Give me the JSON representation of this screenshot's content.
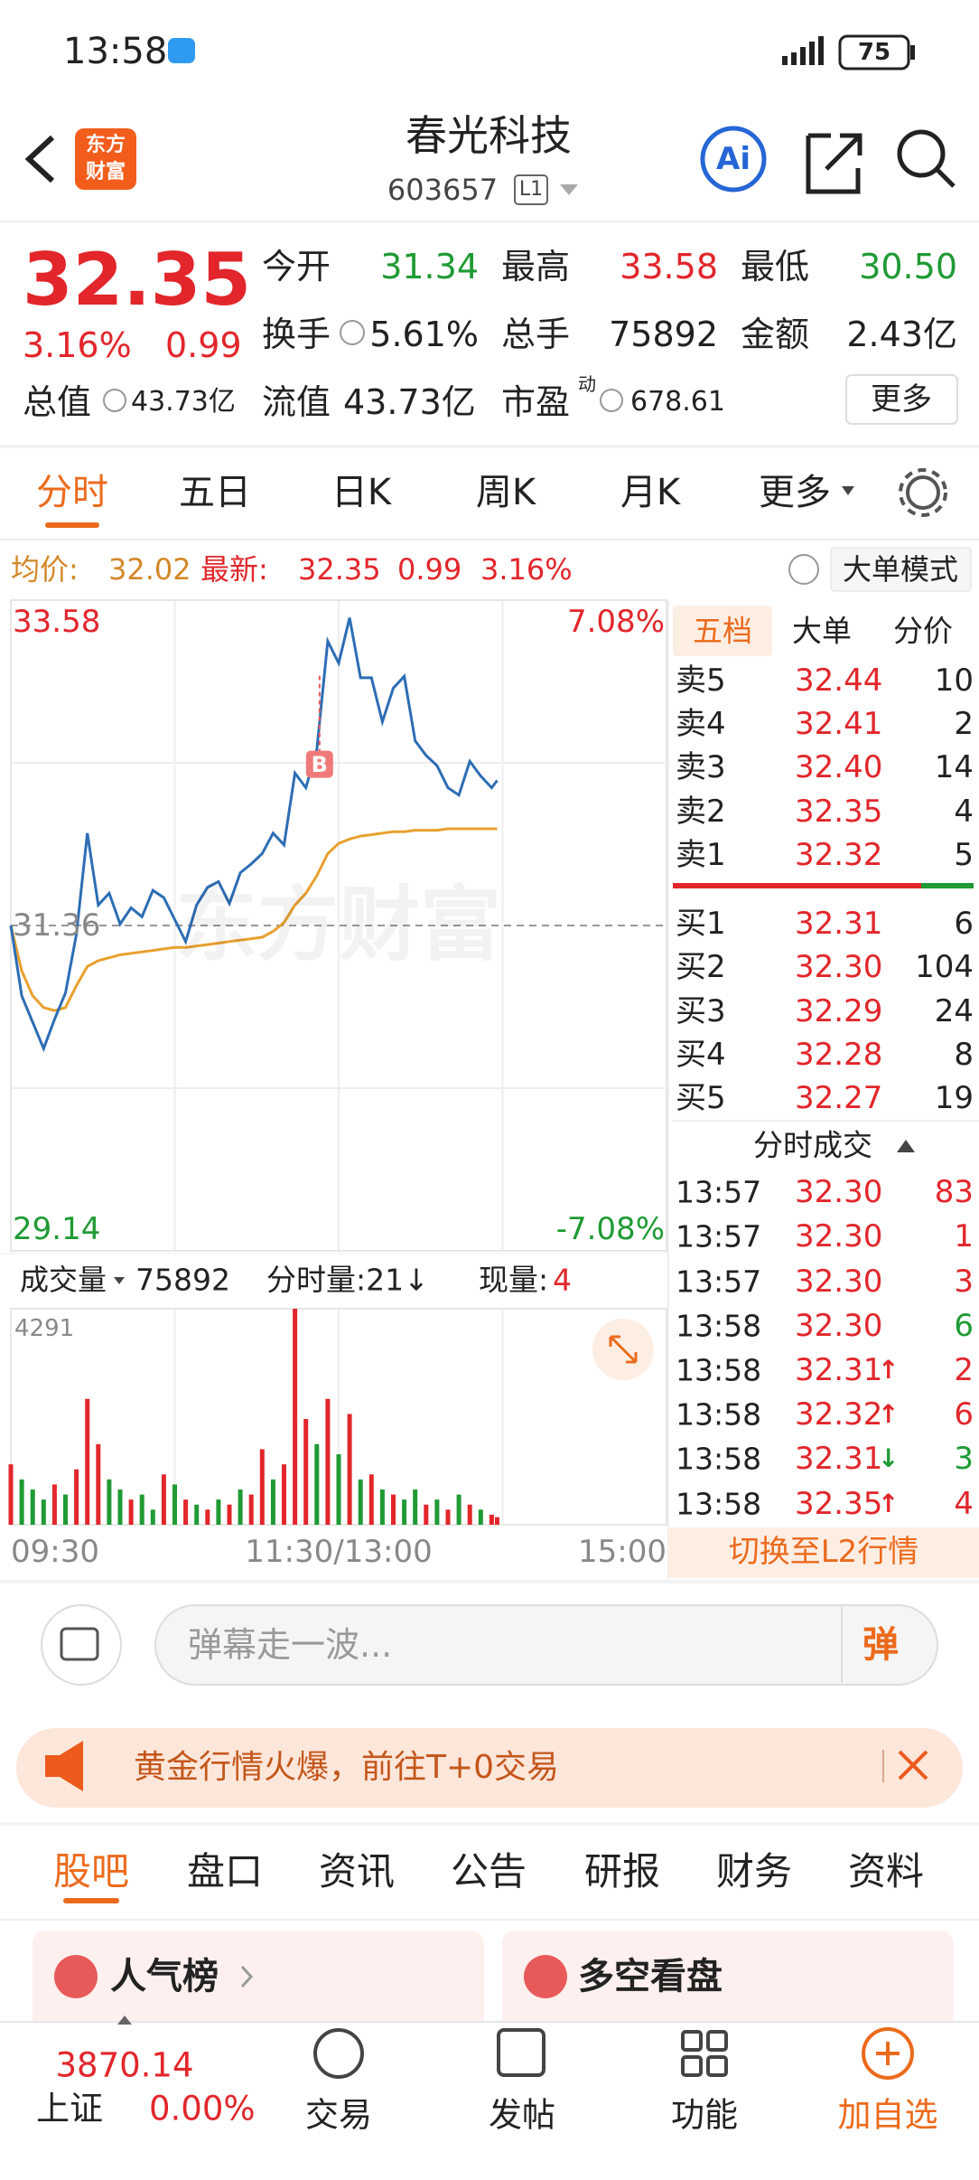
{
  "status_bar": {
    "time": "13:58",
    "battery": "75"
  },
  "header": {
    "logo": [
      "东方",
      "财富"
    ],
    "title": "春光科技",
    "code": "603657",
    "level": "L1",
    "ai": "Ai"
  },
  "quote": {
    "price": "32.35",
    "change_pct": "3.16%",
    "change": "0.99",
    "open": {
      "label": "今开",
      "value": "31.34"
    },
    "high": {
      "label": "最高",
      "value": "33.58"
    },
    "low": {
      "label": "最低",
      "value": "30.50"
    },
    "turnover": {
      "label": "换手",
      "value": "5.61%"
    },
    "volume": {
      "label": "总手",
      "value": "75892"
    },
    "amount": {
      "label": "金额",
      "value": "2.43亿"
    },
    "market_cap": {
      "label": "总值",
      "value": "43.73亿"
    },
    "float_cap": {
      "label": "流值",
      "value": "43.73亿"
    },
    "pe": {
      "label": "市盈",
      "tag": "动",
      "value": "678.61"
    },
    "more": "更多"
  },
  "tabs": [
    "分时",
    "五日",
    "日K",
    "周K",
    "月K",
    "更多"
  ],
  "info": {
    "avg_label": "均价:",
    "avg": "32.02",
    "latest_label": "最新:",
    "latest": "32.35",
    "change": "0.99",
    "change_pct": "3.16%",
    "mode": "大单模式"
  },
  "intraday": {
    "watermark": "东方财富",
    "ylim": [
      29.14,
      33.58
    ],
    "yticks": [
      33.58,
      31.36,
      29.14
    ],
    "pct_top": "7.08%",
    "pct_bottom": "-7.08%",
    "xticks": [
      "09:30",
      "11:30/13:00",
      "15:00"
    ],
    "x": [
      "09:30",
      "09:34",
      "09:38",
      "09:42",
      "09:46",
      "09:50",
      "09:54",
      "09:58",
      "10:02",
      "10:06",
      "10:10",
      "10:14",
      "10:18",
      "10:22",
      "10:26",
      "10:30",
      "10:34",
      "10:38",
      "10:42",
      "10:46",
      "10:50",
      "10:54",
      "10:58",
      "11:02",
      "11:06",
      "11:10",
      "11:14",
      "11:18",
      "11:22",
      "11:26",
      "13:00",
      "13:04",
      "13:08",
      "13:12",
      "13:16",
      "13:20",
      "13:24",
      "13:28",
      "13:32",
      "13:36",
      "13:40",
      "13:44",
      "13:48",
      "13:52",
      "13:56",
      "13:58"
    ],
    "price": [
      31.36,
      30.88,
      30.7,
      30.52,
      30.72,
      30.9,
      31.3,
      31.99,
      31.5,
      31.58,
      31.37,
      31.48,
      31.42,
      31.6,
      31.55,
      31.4,
      31.25,
      31.5,
      31.62,
      31.66,
      31.51,
      31.72,
      31.78,
      31.85,
      31.99,
      31.91,
      32.4,
      32.3,
      32.56,
      33.3,
      33.15,
      33.46,
      33.05,
      33.05,
      32.75,
      32.98,
      33.06,
      32.62,
      32.52,
      32.45,
      32.3,
      32.25,
      32.48,
      32.38,
      32.3,
      32.35
    ],
    "avg": [
      31.36,
      31.05,
      30.88,
      30.8,
      30.78,
      30.8,
      30.95,
      31.08,
      31.12,
      31.14,
      31.16,
      31.17,
      31.18,
      31.19,
      31.2,
      31.21,
      31.21,
      31.22,
      31.23,
      31.24,
      31.25,
      31.26,
      31.27,
      31.28,
      31.32,
      31.38,
      31.5,
      31.58,
      31.7,
      31.85,
      31.92,
      31.95,
      31.97,
      31.98,
      31.99,
      32.0,
      32.0,
      32.01,
      32.01,
      32.01,
      32.02,
      32.02,
      32.02,
      32.02,
      32.02,
      32.02
    ],
    "price_color": "#2d6db5",
    "avg_color": "#e8a02e",
    "buy_marker": {
      "label": "B",
      "time": "11:23",
      "value": 32.46
    }
  },
  "volume": {
    "label": "成交量",
    "total": "75892",
    "interval": "分时量:21↓",
    "current_label": "现量:",
    "current": "4",
    "ylim": [
      0,
      4291
    ],
    "yticks": [
      4291
    ],
    "up_color": "#e2262b",
    "down_color": "#1f9a34",
    "values": [
      1200,
      900,
      700,
      500,
      800,
      600,
      1100,
      2500,
      1600,
      900,
      700,
      500,
      600,
      300,
      1000,
      800,
      500,
      400,
      300,
      500,
      400,
      700,
      600,
      1500,
      900,
      1200,
      4291,
      2100,
      1600,
      2500,
      1400,
      2200,
      900,
      1000,
      700,
      600,
      500,
      700,
      400,
      500,
      300,
      600,
      400,
      300,
      200,
      150
    ],
    "directions": [
      "up",
      "down",
      "down",
      "down",
      "up",
      "down",
      "up",
      "up",
      "up",
      "down",
      "down",
      "up",
      "down",
      "down",
      "up",
      "down",
      "up",
      "down",
      "up",
      "down",
      "up",
      "down",
      "up",
      "up",
      "down",
      "up",
      "up",
      "up",
      "down",
      "up",
      "down",
      "up",
      "down",
      "up",
      "down",
      "up",
      "down",
      "down",
      "up",
      "down",
      "up",
      "down",
      "up",
      "down",
      "up",
      "up"
    ]
  },
  "order_book": {
    "tabs": [
      "五档",
      "大单",
      "分价"
    ],
    "asks": [
      {
        "label": "卖5",
        "price": "32.44",
        "volume": "10"
      },
      {
        "label": "卖4",
        "price": "32.41",
        "volume": "2"
      },
      {
        "label": "卖3",
        "price": "32.40",
        "volume": "14"
      },
      {
        "label": "卖2",
        "price": "32.35",
        "volume": "4"
      },
      {
        "label": "卖1",
        "price": "32.32",
        "volume": "5"
      }
    ],
    "bids": [
      {
        "label": "买1",
        "price": "32.31",
        "volume": "6"
      },
      {
        "label": "买2",
        "price": "32.30",
        "volume": "104"
      },
      {
        "label": "买3",
        "price": "32.29",
        "volume": "24"
      },
      {
        "label": "买4",
        "price": "32.28",
        "volume": "8"
      },
      {
        "label": "买5",
        "price": "32.27",
        "volume": "19"
      }
    ]
  },
  "trades": {
    "title": "分时成交",
    "rows": [
      {
        "time": "13:57",
        "price": "32.30",
        "volume": "83",
        "side": "buy"
      },
      {
        "time": "13:57",
        "price": "32.30",
        "volume": "1",
        "side": "buy"
      },
      {
        "time": "13:57",
        "price": "32.30",
        "volume": "3",
        "side": "buy"
      },
      {
        "time": "13:58",
        "price": "32.30",
        "volume": "6",
        "side": "sell"
      },
      {
        "time": "13:58",
        "price": "32.31",
        "arrow": "↑",
        "volume": "2",
        "side": "buy"
      },
      {
        "time": "13:58",
        "price": "32.32",
        "arrow": "↑",
        "volume": "6",
        "side": "buy"
      },
      {
        "time": "13:58",
        "price": "32.31",
        "arrow": "↓",
        "volume": "3",
        "side": "sell"
      },
      {
        "time": "13:58",
        "price": "32.35",
        "arrow": "↑",
        "volume": "4",
        "side": "buy"
      }
    ],
    "l2_link": "切换至L2行情"
  },
  "comment": {
    "placeholder": "弹幕走一波...",
    "button": "弹"
  },
  "banner": {
    "text": "黄金行情火爆，前往T+0交易"
  },
  "section_tabs": [
    "股吧",
    "盘口",
    "资讯",
    "公告",
    "研报",
    "财务",
    "资料"
  ],
  "cards": [
    "人气榜",
    "多空看盘"
  ],
  "bottom_nav": {
    "index": {
      "value": "3870.14",
      "name": "上证",
      "change": "0.00%"
    },
    "items": [
      "交易",
      "发帖",
      "功能",
      "加自选"
    ]
  }
}
